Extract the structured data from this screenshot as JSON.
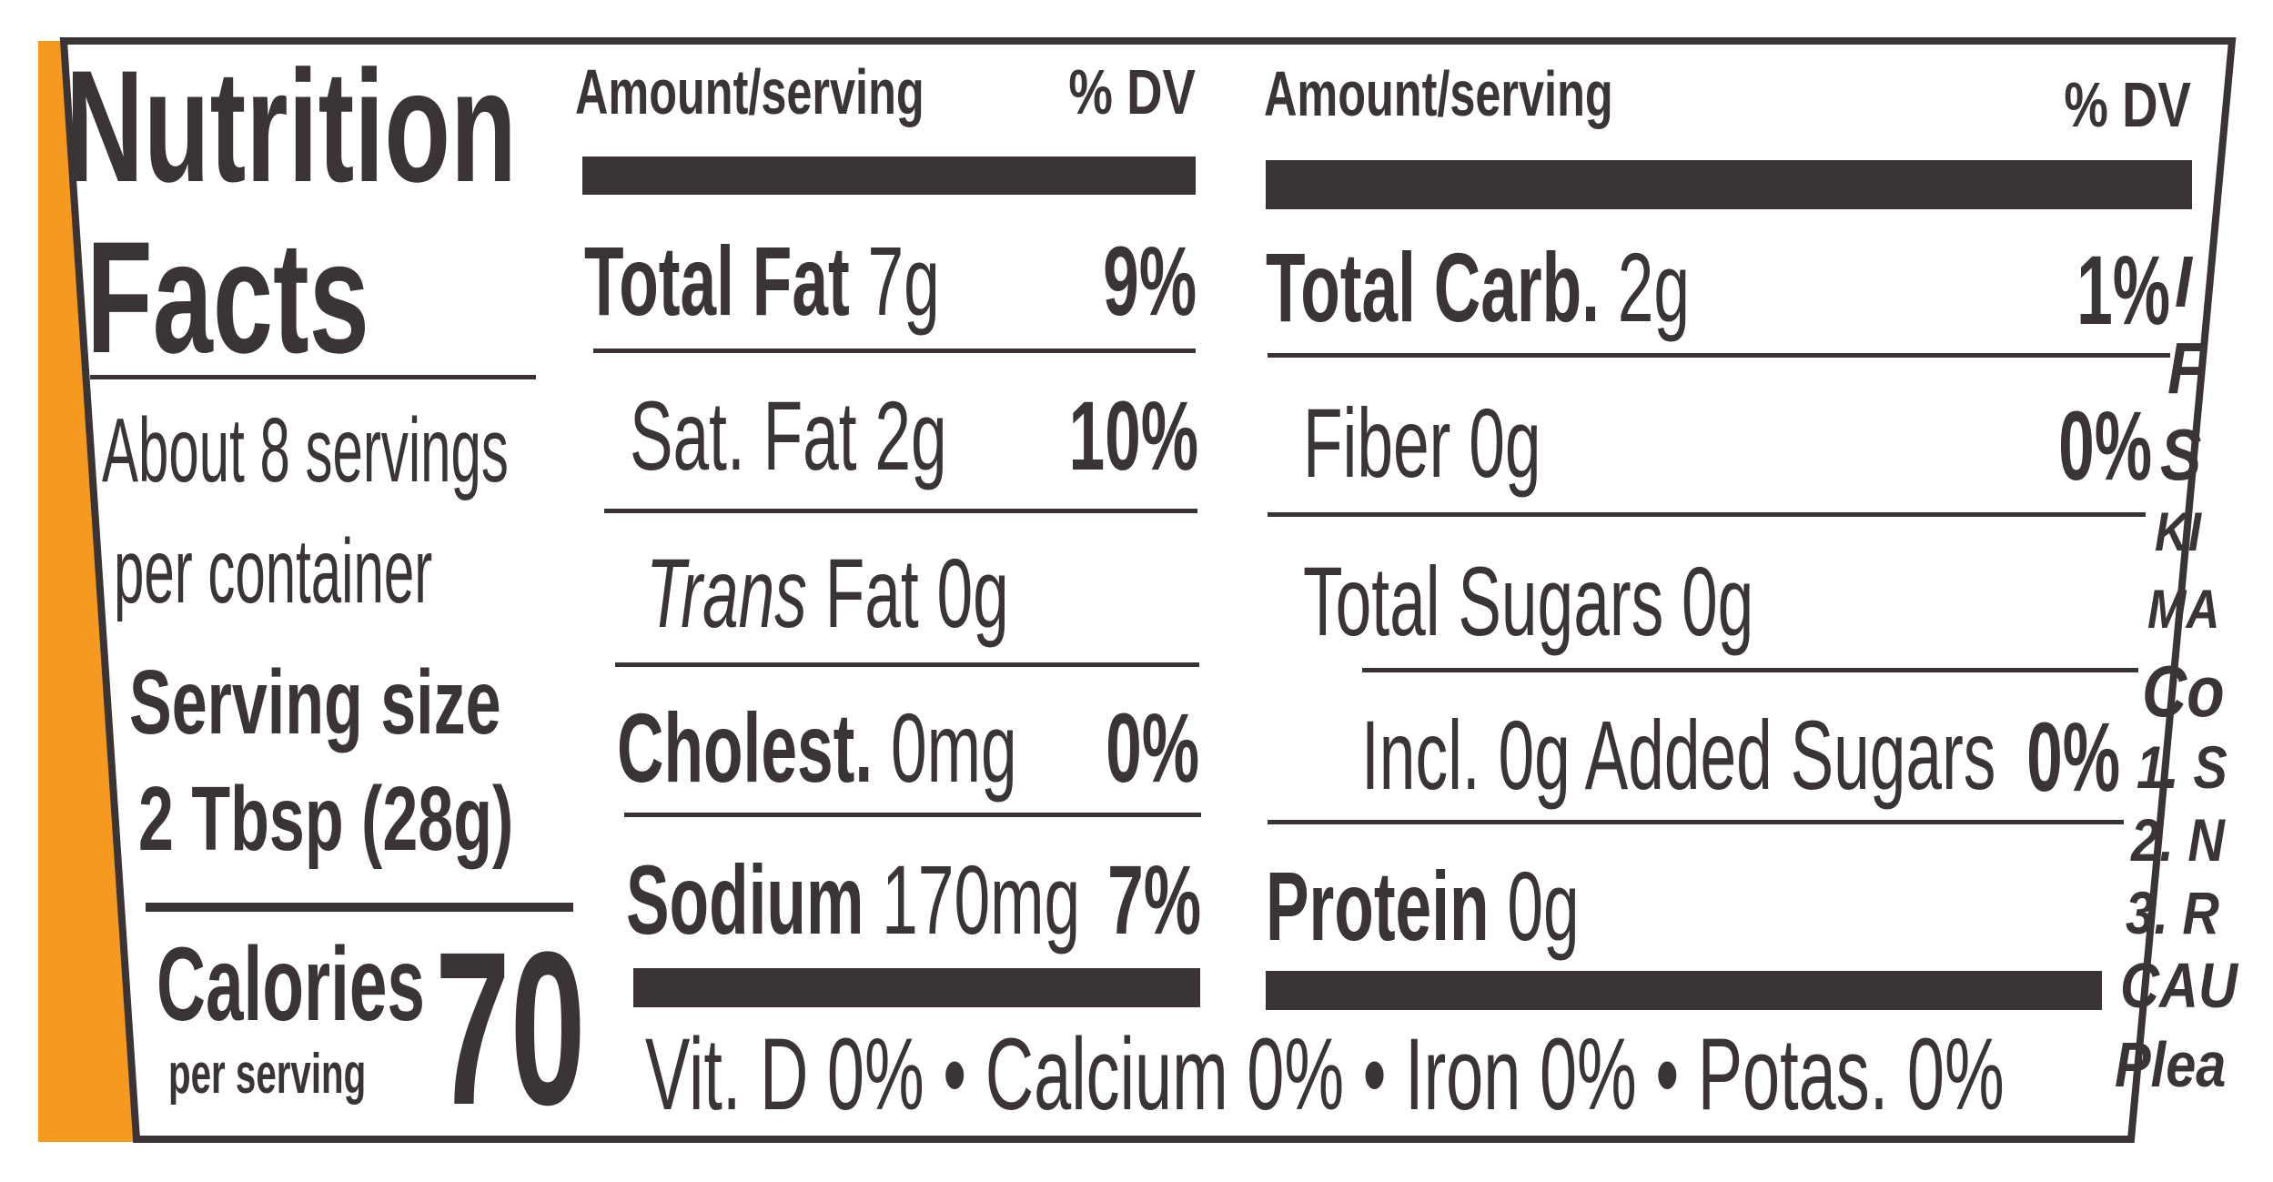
{
  "title": {
    "line1": "Nutrition",
    "line2": "Facts"
  },
  "servings": {
    "line1": "About 8 servings",
    "line2": "per container",
    "size_label": "Serving size",
    "size_value": "2 Tbsp (28g)"
  },
  "calories": {
    "label": "Calories",
    "sub": "per serving",
    "value": "70"
  },
  "col1": {
    "header_amount": "Amount/serving",
    "header_dv": "% DV",
    "rows": [
      {
        "name": "Total Fat",
        "amount": "7g",
        "dv": "9%"
      },
      {
        "name": "Sat. Fat",
        "amount": "2g",
        "dv": "10%"
      },
      {
        "name": "Trans",
        "amount": "Fat 0g",
        "dv": ""
      },
      {
        "name": "Cholest.",
        "amount": "0mg",
        "dv": "0%"
      },
      {
        "name": "Sodium",
        "amount": "170mg",
        "dv": "7%"
      }
    ]
  },
  "col2": {
    "header_amount": "Amount/serving",
    "header_dv": "% DV",
    "rows": [
      {
        "name": "Total Carb.",
        "amount": "2g",
        "dv": "1%"
      },
      {
        "name": "Fiber",
        "amount": "0g",
        "dv": "0%"
      },
      {
        "name": "Total Sugars",
        "amount": "0g",
        "dv": ""
      },
      {
        "name": "Incl. 0g Added Sugars",
        "amount": "",
        "dv": "0%"
      },
      {
        "name": "Protein",
        "amount": "0g",
        "dv": ""
      }
    ]
  },
  "vitamins": "Vit. D 0% • Calcium 0% • Iron 0% • Potas. 0%",
  "side_fragments": [
    "I",
    "F",
    "S",
    "KI",
    "MA",
    "Co",
    "1. S",
    "2. N",
    "3. R",
    "CAU",
    "Plea"
  ],
  "colors": {
    "ink": "#3a3435",
    "orange": "#f59a1e"
  }
}
